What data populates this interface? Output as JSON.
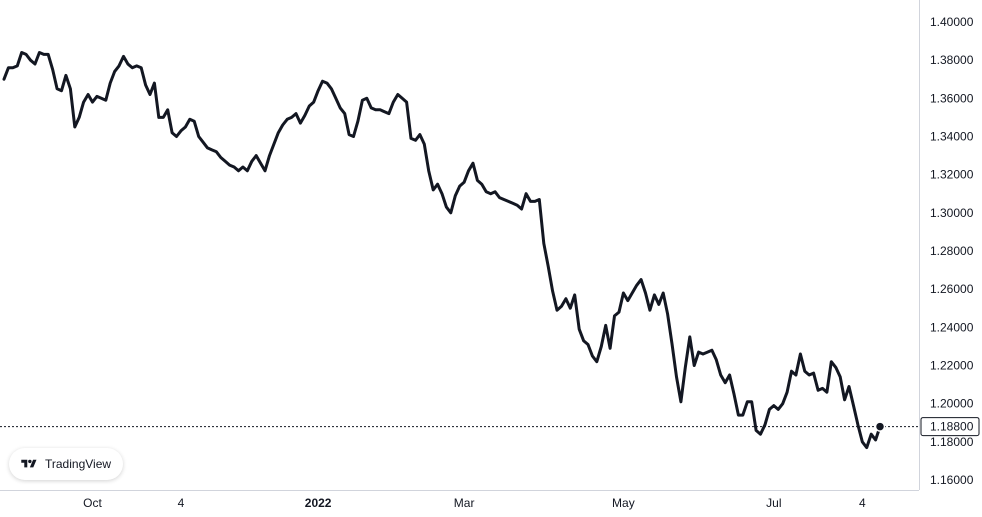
{
  "chart_data": {
    "type": "line",
    "title": "",
    "xlabel": "",
    "ylabel": "",
    "ylim": [
      1.16,
      1.4
    ],
    "yticks": [
      "1.40000",
      "1.38000",
      "1.36000",
      "1.34000",
      "1.32000",
      "1.30000",
      "1.28000",
      "1.26000",
      "1.24000",
      "1.22000",
      "1.20000",
      "1.18000",
      "1.16000"
    ],
    "ytick_values": [
      1.4,
      1.38,
      1.36,
      1.34,
      1.32,
      1.3,
      1.28,
      1.26,
      1.24,
      1.22,
      1.2,
      1.18,
      1.16
    ],
    "xticks": [
      {
        "label": "Oct",
        "index": 20,
        "bold": false
      },
      {
        "label": "4",
        "index": 40,
        "bold": false
      },
      {
        "label": "2022",
        "index": 71,
        "bold": true
      },
      {
        "label": "Mar",
        "index": 104,
        "bold": false
      },
      {
        "label": "May",
        "index": 140,
        "bold": false
      },
      {
        "label": "Jul",
        "index": 174,
        "bold": false
      },
      {
        "label": "4",
        "index": 194,
        "bold": false
      }
    ],
    "last_price": 1.188,
    "last_price_label": "1.18800",
    "grid": false,
    "line_color": "#131722",
    "series": [
      {
        "values": [
          1.37,
          1.376,
          1.376,
          1.377,
          1.384,
          1.383,
          1.38,
          1.378,
          1.384,
          1.383,
          1.383,
          1.375,
          1.365,
          1.364,
          1.372,
          1.365,
          1.345,
          1.35,
          1.358,
          1.362,
          1.358,
          1.361,
          1.36,
          1.359,
          1.368,
          1.374,
          1.377,
          1.382,
          1.378,
          1.376,
          1.377,
          1.376,
          1.367,
          1.362,
          1.368,
          1.35,
          1.35,
          1.354,
          1.342,
          1.34,
          1.343,
          1.345,
          1.349,
          1.348,
          1.34,
          1.337,
          1.334,
          1.333,
          1.332,
          1.329,
          1.327,
          1.325,
          1.324,
          1.322,
          1.324,
          1.322,
          1.327,
          1.33,
          1.326,
          1.322,
          1.33,
          1.336,
          1.342,
          1.346,
          1.349,
          1.35,
          1.352,
          1.347,
          1.351,
          1.356,
          1.358,
          1.364,
          1.369,
          1.368,
          1.365,
          1.36,
          1.355,
          1.352,
          1.341,
          1.34,
          1.348,
          1.359,
          1.36,
          1.355,
          1.354,
          1.354,
          1.353,
          1.352,
          1.358,
          1.362,
          1.36,
          1.358,
          1.339,
          1.338,
          1.341,
          1.336,
          1.322,
          1.312,
          1.315,
          1.31,
          1.303,
          1.3,
          1.309,
          1.314,
          1.316,
          1.322,
          1.326,
          1.317,
          1.315,
          1.311,
          1.31,
          1.311,
          1.308,
          1.307,
          1.306,
          1.305,
          1.304,
          1.302,
          1.31,
          1.306,
          1.306,
          1.307,
          1.284,
          1.272,
          1.259,
          1.249,
          1.251,
          1.255,
          1.25,
          1.257,
          1.239,
          1.233,
          1.231,
          1.225,
          1.222,
          1.23,
          1.241,
          1.229,
          1.246,
          1.248,
          1.258,
          1.254,
          1.258,
          1.262,
          1.265,
          1.258,
          1.249,
          1.257,
          1.252,
          1.258,
          1.247,
          1.231,
          1.214,
          1.201,
          1.219,
          1.235,
          1.22,
          1.227,
          1.226,
          1.227,
          1.228,
          1.223,
          1.215,
          1.211,
          1.215,
          1.205,
          1.194,
          1.194,
          1.201,
          1.201,
          1.186,
          1.184,
          1.189,
          1.197,
          1.199,
          1.197,
          1.2,
          1.206,
          1.217,
          1.215,
          1.226,
          1.217,
          1.215,
          1.216,
          1.207,
          1.208,
          1.206,
          1.222,
          1.219,
          1.214,
          1.202,
          1.209,
          1.199,
          1.189,
          1.18,
          1.177,
          1.184,
          1.181,
          1.188
        ]
      }
    ]
  },
  "badge": {
    "brand": "TradingView"
  }
}
